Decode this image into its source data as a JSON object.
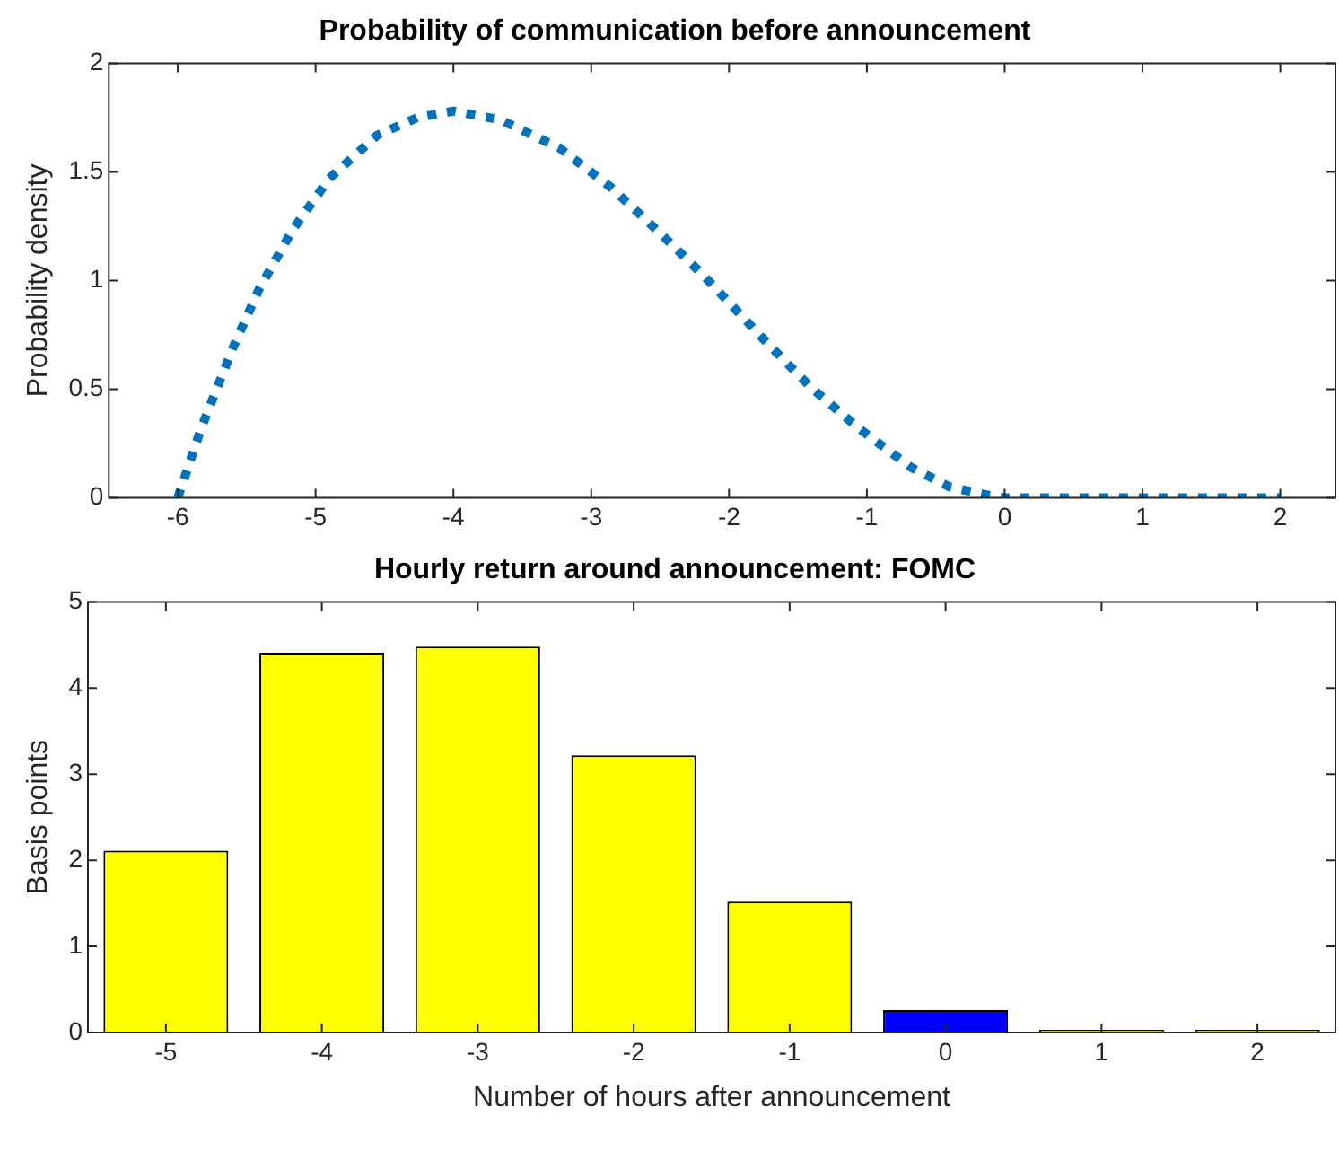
{
  "chart_data": [
    {
      "type": "line",
      "title": "Probability of communication before announcement",
      "ylabel": "Probability density",
      "x": [
        -6,
        -5.83,
        -5.6,
        -5.41,
        -5.17,
        -4.9,
        -4.55,
        -4.26,
        -4,
        -3.66,
        -3.23,
        -2.86,
        -2.52,
        -2.18,
        -1.75,
        -1.41,
        -1.06,
        -0.68,
        -0.4,
        -0.11,
        0,
        0.5,
        1,
        1.5,
        2
      ],
      "series": [
        {
          "color": "#0072bd",
          "values": [
            0,
            0.32,
            0.69,
            0.96,
            1.23,
            1.47,
            1.67,
            1.75,
            1.78,
            1.74,
            1.61,
            1.43,
            1.23,
            1.02,
            0.73,
            0.51,
            0.32,
            0.14,
            0.05,
            0.01,
            0,
            0,
            0,
            0,
            0
          ]
        }
      ],
      "xlim": [
        -6.5,
        2.4
      ],
      "xticks": [
        -6,
        -5,
        -4,
        -3,
        -2,
        -1,
        0,
        1,
        2
      ],
      "ylim": [
        0,
        2
      ],
      "yticks": [
        0,
        0.5,
        1,
        1.5,
        2
      ],
      "line_style": "dotted",
      "marker": "none"
    },
    {
      "type": "bar",
      "title": "Hourly return around announcement: FOMC",
      "xlabel": "Number of hours after announcement",
      "ylabel": "Basis points",
      "categories": [
        "-5",
        "-4",
        "-3",
        "-2",
        "-1",
        "0",
        "1",
        "2"
      ],
      "values": [
        2.11,
        4.41,
        4.48,
        3.22,
        1.52,
        0.26,
        0.03,
        0.03
      ],
      "colors": [
        "#ffff00",
        "#ffff00",
        "#ffff00",
        "#ffff00",
        "#ffff00",
        "#0000ff",
        "#ffff00",
        "#ffff00"
      ],
      "ylim": [
        0,
        5
      ],
      "yticks": [
        0,
        1,
        2,
        3,
        4,
        5
      ]
    }
  ]
}
